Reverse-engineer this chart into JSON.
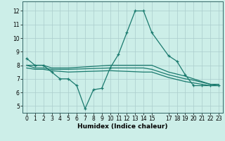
{
  "background_color": "#cceee8",
  "grid_color": "#aacccc",
  "line_color": "#1a7a6e",
  "xlabel": "Humidex (Indice chaleur)",
  "xlim": [
    -0.5,
    23.5
  ],
  "ylim": [
    4.5,
    12.7
  ],
  "yticks": [
    5,
    6,
    7,
    8,
    9,
    10,
    11,
    12
  ],
  "xticks": [
    0,
    1,
    2,
    3,
    4,
    5,
    6,
    7,
    8,
    9,
    10,
    11,
    12,
    13,
    14,
    15,
    17,
    18,
    19,
    20,
    21,
    22,
    23
  ],
  "curve1_x": [
    0,
    1,
    2,
    3,
    4,
    5,
    6,
    7,
    8,
    9,
    10,
    11,
    12,
    13,
    14,
    15,
    17,
    18,
    19,
    20,
    21,
    22,
    23
  ],
  "curve1_y": [
    8.5,
    8.0,
    8.0,
    7.5,
    7.0,
    7.0,
    6.5,
    4.8,
    6.2,
    6.3,
    7.8,
    8.8,
    10.4,
    12.0,
    12.0,
    10.4,
    8.7,
    8.3,
    7.3,
    6.5,
    6.5,
    6.5,
    6.5
  ],
  "curve2_x": [
    0,
    1,
    2,
    3,
    5,
    10,
    14,
    15,
    17,
    19,
    20,
    22,
    23
  ],
  "curve2_y": [
    8.0,
    8.0,
    8.0,
    7.8,
    7.8,
    8.0,
    8.0,
    8.0,
    7.5,
    7.2,
    7.0,
    6.6,
    6.6
  ],
  "curve3_x": [
    0,
    1,
    2,
    3,
    5,
    10,
    14,
    15,
    17,
    19,
    20,
    22,
    23
  ],
  "curve3_y": [
    8.0,
    7.8,
    7.8,
    7.7,
    7.7,
    7.8,
    7.8,
    7.7,
    7.3,
    7.0,
    6.9,
    6.6,
    6.5
  ],
  "curve4_x": [
    0,
    1,
    2,
    3,
    5,
    10,
    14,
    15,
    17,
    19,
    20,
    22,
    23
  ],
  "curve4_y": [
    7.8,
    7.7,
    7.7,
    7.6,
    7.5,
    7.6,
    7.5,
    7.5,
    7.1,
    6.8,
    6.7,
    6.5,
    6.5
  ]
}
